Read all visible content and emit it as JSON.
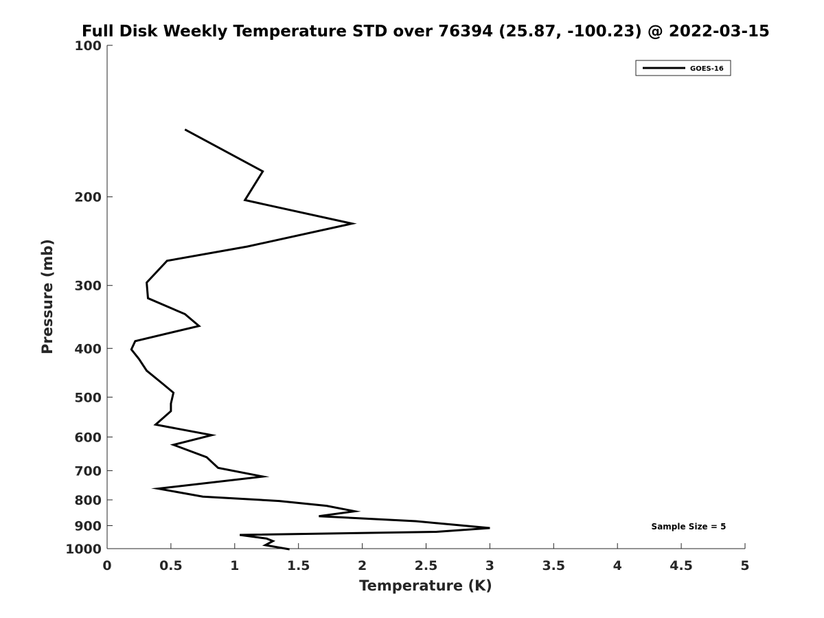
{
  "chart_data": {
    "type": "line",
    "title": "Full Disk Weekly Temperature STD over 76394 (25.87, -100.23) @ 2022-03-15",
    "xlabel": "Temperature (K)",
    "ylabel": "Pressure (mb)",
    "xlim": [
      0,
      5
    ],
    "ylim": [
      100,
      1000
    ],
    "y_scale": "log",
    "y_reversed": true,
    "x_ticks": [
      "0",
      "0.5",
      "1",
      "1.5",
      "2",
      "2.5",
      "3",
      "3.5",
      "4",
      "4.5",
      "5"
    ],
    "y_ticks": [
      "100",
      "200",
      "300",
      "400",
      "500",
      "600",
      "700",
      "800",
      "900",
      "1000"
    ],
    "grid": false,
    "legend": {
      "placement": "top-right",
      "entries": [
        "GOES-16"
      ]
    },
    "annotation": "Sample Size = 5",
    "series": [
      {
        "name": "GOES-16",
        "color": "#000000",
        "x": [
          0.61,
          1.22,
          1.08,
          1.92,
          1.1,
          0.47,
          0.31,
          0.32,
          0.61,
          0.72,
          0.22,
          0.19,
          0.25,
          0.31,
          0.43,
          0.52,
          0.5,
          0.5,
          0.38,
          0.82,
          0.52,
          0.78,
          0.87,
          1.22,
          0.4,
          0.75,
          1.35,
          1.72,
          1.94,
          1.66,
          2.42,
          3.0,
          2.58,
          1.04,
          1.25,
          1.3,
          1.24,
          1.43
        ],
        "y": [
          147,
          178,
          203,
          226,
          251,
          268,
          296,
          318,
          342,
          361,
          387,
          402,
          420,
          443,
          469,
          490,
          515,
          533,
          567,
          595,
          622,
          658,
          691,
          719,
          760,
          788,
          804,
          822,
          843,
          862,
          882,
          910,
          926,
          939,
          955,
          966,
          984,
          1003
        ]
      }
    ]
  }
}
